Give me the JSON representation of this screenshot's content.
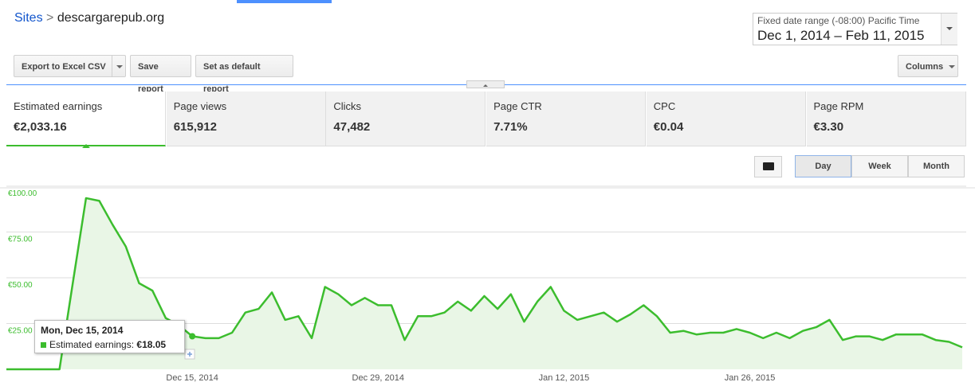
{
  "header": {
    "breadcrumb_root": "Sites",
    "separator": ">",
    "site": "descargarepub.org",
    "date_range_label": "Fixed date range (-08:00) Pacific Time",
    "date_range": "Dec 1, 2014 – Feb 11, 2015"
  },
  "toolbar": {
    "buttons": [
      "Export to Excel CSV",
      "Save report",
      "Set as default report"
    ],
    "columns": "Columns"
  },
  "metrics": [
    {
      "name": "Estimated earnings",
      "value": "€2,033.16"
    },
    {
      "name": "Page views",
      "value": "615,912"
    },
    {
      "name": "Clicks",
      "value": "47,482"
    },
    {
      "name": "Page CTR",
      "value": "7.71%"
    },
    {
      "name": "CPC",
      "value": "€0.04"
    },
    {
      "name": "Page RPM",
      "value": "€3.30"
    }
  ],
  "granularity": [
    "Day",
    "Week",
    "Month"
  ],
  "chart_data": {
    "type": "line",
    "color": "#3cbd2e",
    "fill": "#e9f6e6",
    "grid": true,
    "categories": [
      null,
      null,
      null,
      null,
      null,
      null,
      null,
      null,
      null,
      null,
      null,
      null,
      null,
      null,
      "Dec 15, 2014",
      null,
      null,
      null,
      null,
      null,
      null,
      null,
      null,
      null,
      null,
      null,
      null,
      null,
      "Dec 29, 2014",
      null,
      null,
      null,
      null,
      null,
      null,
      null,
      null,
      null,
      null,
      null,
      null,
      null,
      "Jan 12, 2015",
      null,
      null,
      null,
      null,
      null,
      null,
      null,
      null,
      null,
      null,
      null,
      null,
      null,
      "Jan 26, 2015",
      null,
      null,
      null,
      null,
      null,
      null,
      null,
      null,
      null,
      null,
      null,
      null,
      null,
      null,
      null,
      null
    ],
    "values": [
      0,
      0,
      0,
      0,
      0,
      47,
      93.5,
      92,
      79,
      67,
      47,
      43,
      28,
      24,
      18.05,
      17,
      17,
      20,
      31,
      33,
      42,
      27,
      29,
      17,
      45,
      41,
      35,
      39,
      35,
      35,
      16,
      29,
      29,
      31,
      37,
      32,
      40,
      33,
      41,
      26,
      37,
      45,
      32,
      27,
      29,
      31,
      26,
      30,
      35,
      29,
      20,
      21,
      19,
      20,
      20,
      22,
      20,
      17,
      20,
      17,
      21,
      23,
      27,
      16,
      18,
      18,
      16,
      19,
      19,
      19,
      16,
      15,
      12
    ],
    "ylim": [
      0,
      100
    ],
    "yticks": [
      {
        "value": 25,
        "label": "€25.00"
      },
      {
        "value": 50,
        "label": "€50.00"
      },
      {
        "value": 75,
        "label": "€75.00"
      },
      {
        "value": 100,
        "label": "€100.00"
      }
    ],
    "tooltip": {
      "index": 14,
      "title": "Mon, Dec 15, 2014",
      "label": "Estimated earnings:",
      "value": "€18.05"
    }
  }
}
